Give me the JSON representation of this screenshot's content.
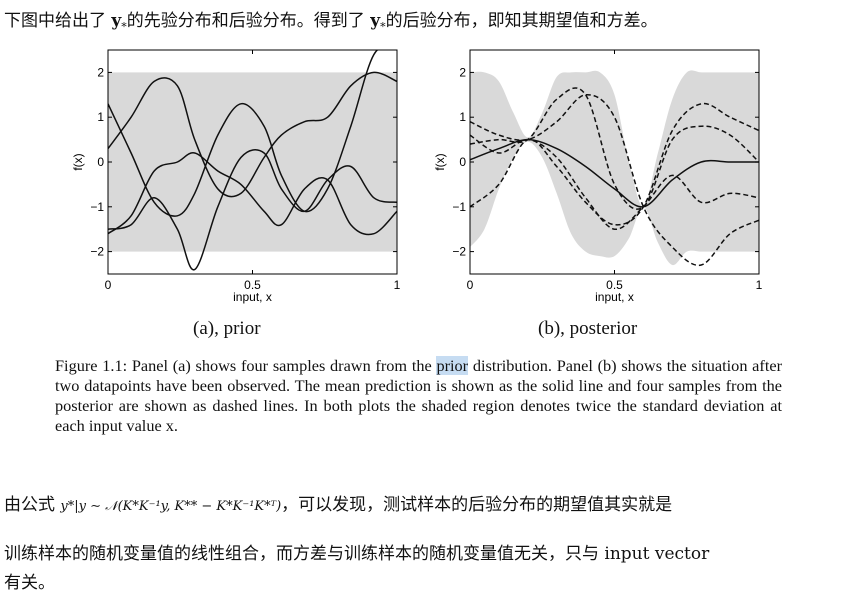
{
  "intro": {
    "part1": "下图中给出了 ",
    "bold1": "y",
    "sub1": "*",
    "part2": "的先验分布和后验分布。得到了 ",
    "bold2": "y",
    "sub2": "*",
    "part3": "的后验分布，即知其期望值和方差。"
  },
  "figure": {
    "panel_a_label": "(a), prior",
    "panel_b_label": "(b), posterior",
    "ylabel": "f(x)",
    "xlabel": "input, x",
    "y_ticks": [
      "2",
      "1",
      "0",
      "−1",
      "−2"
    ],
    "x_ticks": [
      "0",
      "0.5",
      "1"
    ]
  },
  "caption": {
    "pre": "Figure 1.1: Panel (a) shows four samples drawn from the ",
    "highlight": "prior",
    "post": " distribution. Panel (b) shows the situation after two datapoints have been observed. The mean prediction is shown as the solid line and four samples from the posterior are shown as dashed lines. In both plots the shaded region denotes twice the standard deviation at each input value x."
  },
  "body": {
    "para1_pre": "由公式 ",
    "formula": "y*|y ∼ 𝒩(K*K⁻¹y, K** − K*K⁻¹K*ᵀ)",
    "para1_post": "，可以发现，测试样本的后验分布的期望值其实就是",
    "para2": "训练样本的随机变量值的线性组合，而方差与训练样本的随机变量值无关，只与 input vector",
    "para3": "有关。"
  },
  "chart_data": [
    {
      "type": "line",
      "title": "(a), prior",
      "xlabel": "input, x",
      "ylabel": "f(x)",
      "xlim": [
        0,
        1
      ],
      "ylim": [
        -2.5,
        2.5
      ],
      "band": {
        "x": [
          0,
          1
        ],
        "lower": [
          -2,
          -2
        ],
        "upper": [
          2,
          2
        ],
        "color": "#d9d9d9"
      },
      "series": [
        {
          "style": "solid",
          "x": [
            0,
            0.08,
            0.16,
            0.24,
            0.3,
            0.38,
            0.46,
            0.54,
            0.6,
            0.68,
            0.76,
            0.84,
            0.92,
            1
          ],
          "y": [
            1.3,
            0.2,
            -0.9,
            -1.2,
            -0.7,
            0.6,
            1.3,
            0.8,
            -0.3,
            -1.1,
            -0.6,
            0.8,
            2.4,
            2.6
          ]
        },
        {
          "style": "solid",
          "x": [
            0,
            0.08,
            0.16,
            0.24,
            0.3,
            0.38,
            0.46,
            0.54,
            0.6,
            0.68,
            0.76,
            0.84,
            0.92,
            1
          ],
          "y": [
            0.3,
            1.0,
            1.8,
            1.7,
            0.5,
            -0.6,
            -0.7,
            0.1,
            0.6,
            0.9,
            1.0,
            1.7,
            2.0,
            1.8
          ]
        },
        {
          "style": "solid",
          "x": [
            0,
            0.08,
            0.16,
            0.24,
            0.3,
            0.38,
            0.46,
            0.54,
            0.6,
            0.68,
            0.76,
            0.84,
            0.92,
            1
          ],
          "y": [
            -1.5,
            -1.4,
            -0.8,
            -1.5,
            -2.4,
            -1.0,
            0.1,
            0.2,
            -0.6,
            -1.1,
            -0.4,
            -0.1,
            -0.8,
            -0.9
          ]
        },
        {
          "style": "solid",
          "x": [
            0,
            0.08,
            0.16,
            0.24,
            0.3,
            0.38,
            0.46,
            0.54,
            0.6,
            0.68,
            0.76,
            0.84,
            0.92,
            1
          ],
          "y": [
            -1.6,
            -1.2,
            -0.2,
            0.0,
            0.2,
            -0.2,
            -0.5,
            -1.1,
            -1.4,
            -0.6,
            -0.4,
            -1.4,
            -1.6,
            -1.1
          ]
        }
      ]
    },
    {
      "type": "line",
      "title": "(b), posterior",
      "xlabel": "input, x",
      "ylabel": "f(x)",
      "xlim": [
        0,
        1
      ],
      "ylim": [
        -2.5,
        2.5
      ],
      "band": {
        "x": [
          0,
          0.05,
          0.1,
          0.15,
          0.2,
          0.25,
          0.3,
          0.35,
          0.4,
          0.45,
          0.5,
          0.55,
          0.6,
          0.65,
          0.7,
          0.75,
          0.8,
          0.85,
          0.9,
          0.95,
          1
        ],
        "lower": [
          -1.9,
          -1.5,
          -0.6,
          0.1,
          0.45,
          0.1,
          -0.7,
          -1.6,
          -2.0,
          -2.1,
          -2.1,
          -1.7,
          -1.0,
          -1.8,
          -2.3,
          -2.0,
          -2.0,
          -2.0,
          -2.0,
          -2.0,
          -2.0
        ],
        "upper": [
          2.0,
          2.0,
          1.8,
          1.1,
          0.55,
          1.1,
          1.9,
          2.0,
          2.0,
          2.0,
          1.5,
          0.0,
          -1.0,
          0.2,
          1.4,
          2.0,
          2.0,
          2.0,
          2.0,
          2.0,
          2.0
        ],
        "color": "#d9d9d9"
      },
      "series": [
        {
          "style": "solid",
          "name": "mean",
          "x": [
            0,
            0.1,
            0.2,
            0.3,
            0.4,
            0.5,
            0.6,
            0.7,
            0.8,
            0.9,
            1
          ],
          "y": [
            0.05,
            0.3,
            0.5,
            0.3,
            -0.1,
            -0.6,
            -1.0,
            -0.4,
            0.0,
            0.0,
            0.0
          ]
        },
        {
          "style": "dashed",
          "x": [
            0,
            0.1,
            0.2,
            0.3,
            0.4,
            0.5,
            0.6,
            0.7,
            0.8,
            0.9,
            1
          ],
          "y": [
            0.9,
            0.6,
            0.5,
            0.9,
            1.5,
            1.0,
            -1.0,
            -1.9,
            -2.3,
            -1.6,
            -1.3
          ]
        },
        {
          "style": "dashed",
          "x": [
            0,
            0.1,
            0.2,
            0.3,
            0.4,
            0.5,
            0.6,
            0.7,
            0.8,
            0.9,
            1
          ],
          "y": [
            0.4,
            0.5,
            0.5,
            1.4,
            1.5,
            -0.5,
            -1.0,
            0.5,
            0.8,
            0.6,
            0.0
          ]
        },
        {
          "style": "dashed",
          "x": [
            0,
            0.1,
            0.2,
            0.3,
            0.4,
            0.5,
            0.6,
            0.7,
            0.8,
            0.9,
            1
          ],
          "y": [
            0.6,
            0.2,
            0.5,
            0.1,
            -0.8,
            -1.5,
            -1.0,
            -0.3,
            -0.9,
            -0.7,
            -0.8
          ]
        },
        {
          "style": "dashed",
          "x": [
            0,
            0.1,
            0.2,
            0.3,
            0.4,
            0.5,
            0.6,
            0.7,
            0.8,
            0.9,
            1
          ],
          "y": [
            -1.0,
            -0.5,
            0.5,
            -0.1,
            -0.9,
            -1.4,
            -1.0,
            0.7,
            1.3,
            1.0,
            0.7
          ]
        }
      ]
    }
  ]
}
